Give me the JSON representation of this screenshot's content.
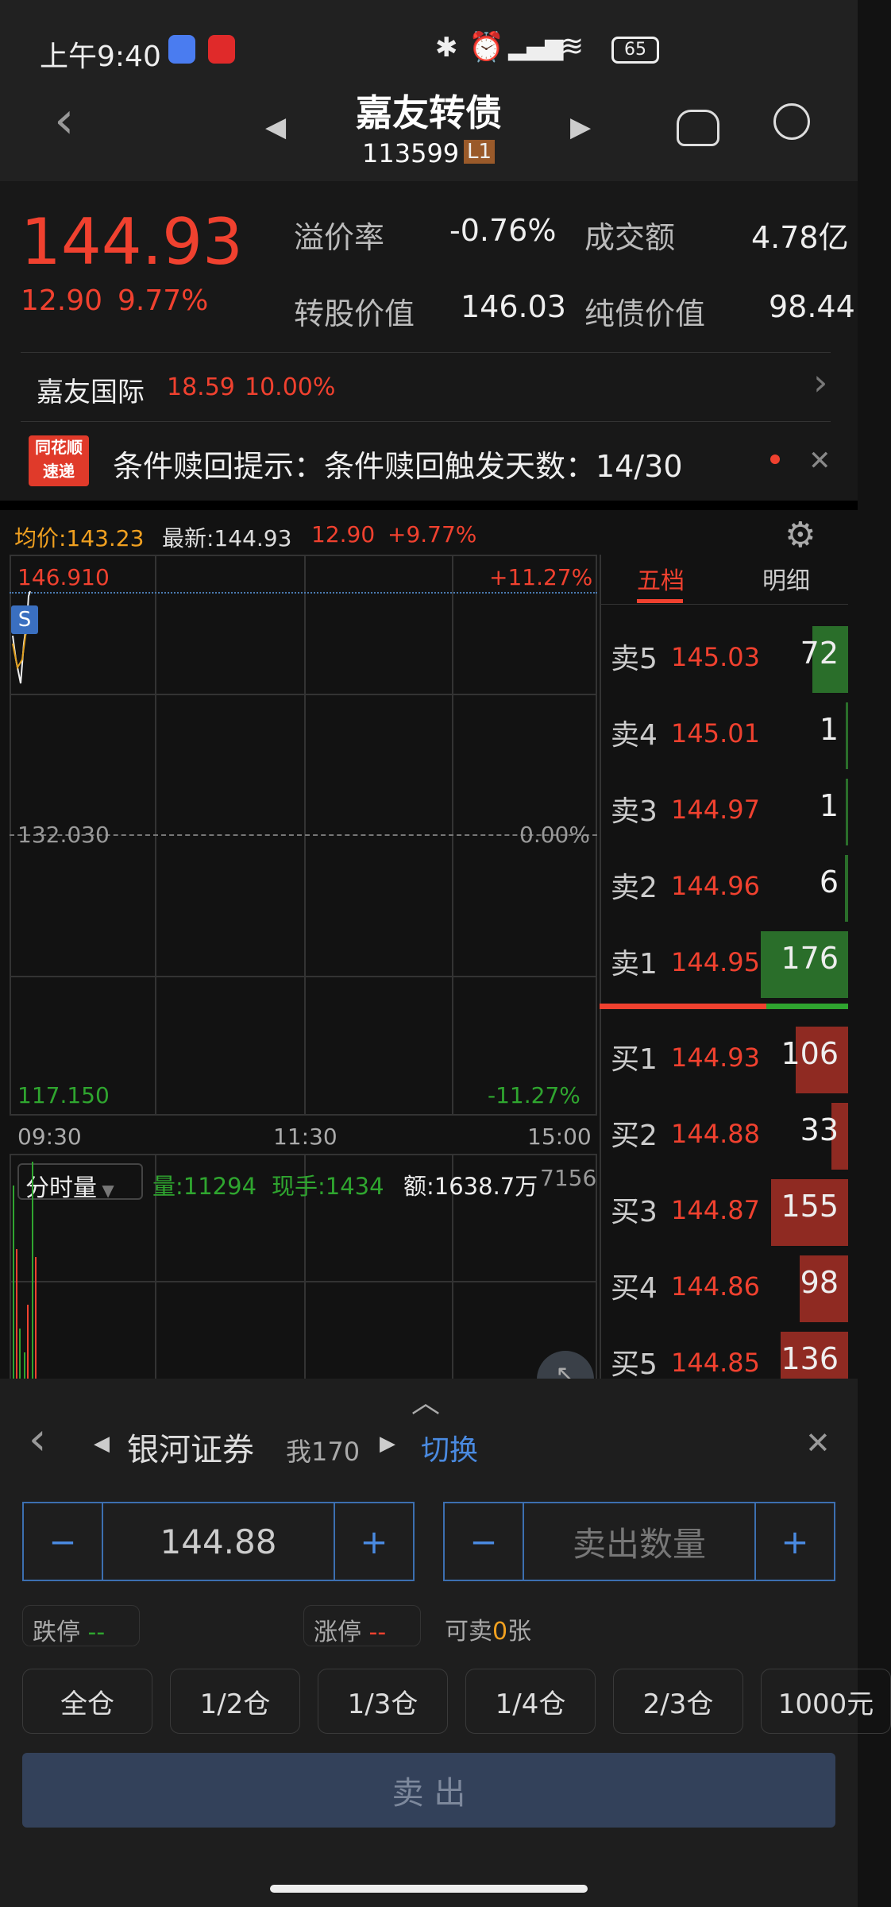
{
  "status_bar": {
    "time": "上午9:40",
    "battery": "65"
  },
  "header": {
    "title": "嘉友转债",
    "code": "113599",
    "level_badge": "L1"
  },
  "quote": {
    "price": "144.93",
    "change": "12.90",
    "change_pct": "9.77%",
    "premium_label": "溢价率",
    "premium": "-0.76%",
    "turnover_label": "成交额",
    "turnover": "4.78亿",
    "conv_value_label": "转股价值",
    "conv_value": "146.03",
    "bond_value_label": "纯债价值",
    "bond_value": "98.44"
  },
  "underlying": {
    "name": "嘉友国际",
    "price": "18.59",
    "pct": "10.00%"
  },
  "alert": {
    "badge_top": "同花顺",
    "badge_bottom": "速递",
    "text": "条件赎回提示：条件赎回触发天数：14/30"
  },
  "chart_info": {
    "avg": "均价:143.23",
    "latest": "最新:144.93",
    "change": "12.90",
    "pct": "+9.77%"
  },
  "chart": {
    "high": "146.910",
    "mid": "132.030",
    "low": "117.150",
    "high_pct": "+11.27%",
    "mid_pct": "0.00%",
    "low_pct": "-11.27%",
    "times": [
      "09:30",
      "11:30",
      "15:00"
    ],
    "marker": "S"
  },
  "volume": {
    "selector": "分时量",
    "vol": "量:11294",
    "now": "现手:1434",
    "amount": "额:1638.7万",
    "scale": "7156"
  },
  "orderbook": {
    "tabs": [
      "五档",
      "明细"
    ],
    "sell_color": "#2a6e2a",
    "buy_color": "#8f2a22",
    "asks": [
      {
        "label": "卖5",
        "price": "145.03",
        "vol": "72"
      },
      {
        "label": "卖4",
        "price": "145.01",
        "vol": "1"
      },
      {
        "label": "卖3",
        "price": "144.97",
        "vol": "1"
      },
      {
        "label": "卖2",
        "price": "144.96",
        "vol": "6"
      },
      {
        "label": "卖1",
        "price": "144.95",
        "vol": "176"
      }
    ],
    "bids": [
      {
        "label": "买1",
        "price": "144.93",
        "vol": "106"
      },
      {
        "label": "买2",
        "price": "144.88",
        "vol": "33"
      },
      {
        "label": "买3",
        "price": "144.87",
        "vol": "155"
      },
      {
        "label": "买4",
        "price": "144.86",
        "vol": "98"
      },
      {
        "label": "买5",
        "price": "144.85",
        "vol": "136"
      }
    ]
  },
  "trade": {
    "broker": "银河证券",
    "account": "我170",
    "switch": "切换",
    "price": "144.88",
    "qty_placeholder": "卖出数量",
    "minus": "−",
    "plus": "+",
    "limit_down": "跌停",
    "limit_down_val": "--",
    "limit_up": "涨停",
    "limit_up_val": "--",
    "can_sell_pre": "可卖",
    "can_sell_num": "0",
    "can_sell_unit": "张",
    "positions": [
      "全仓",
      "1/2仓",
      "1/3仓",
      "1/4仓",
      "2/3仓",
      "1000元"
    ],
    "sell": "卖 出"
  }
}
